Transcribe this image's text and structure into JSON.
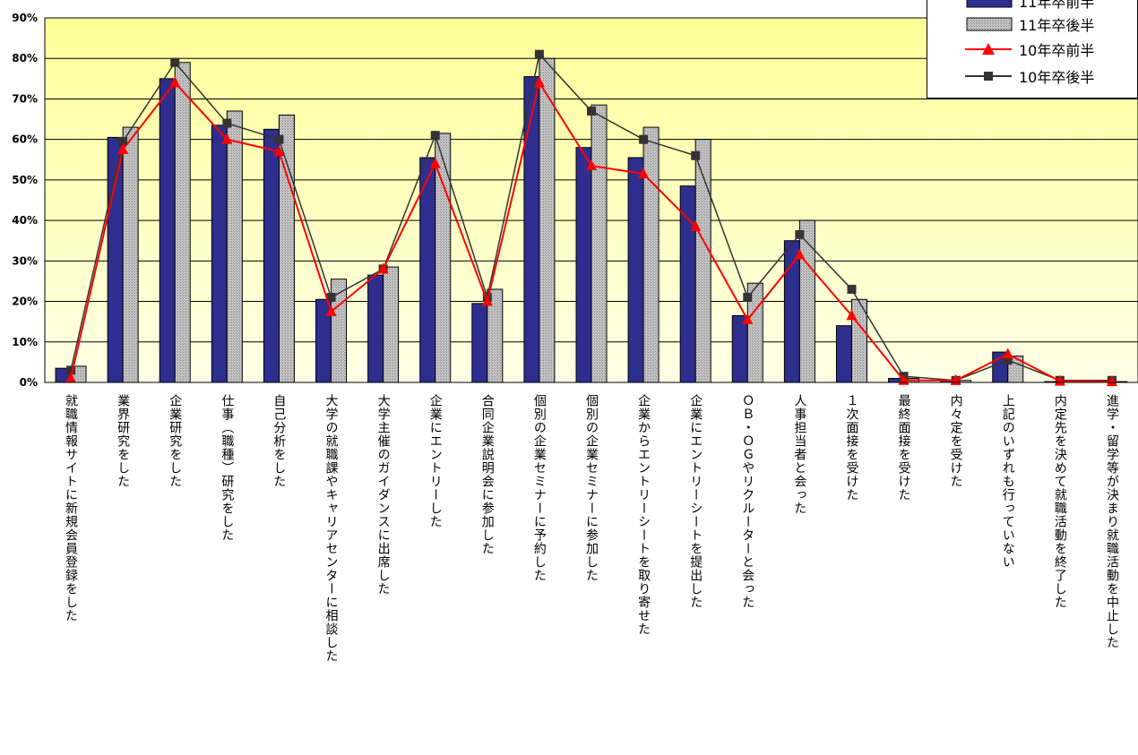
{
  "title_fragment": "",
  "chart_data": {
    "type": "bar",
    "ylim": [
      0,
      90
    ],
    "yticks": [
      "0%",
      "10%",
      "20%",
      "30%",
      "40%",
      "50%",
      "60%",
      "70%",
      "80%",
      "90%"
    ],
    "grid": true,
    "legend_position": "top-right",
    "categories": [
      "就職情報サイトに新規会員登録をした",
      "業界研究をした",
      "企業研究をした",
      "仕事（職種）研究をした",
      "自己分析をした",
      "大学の就職課やキャリアセンターに相談した",
      "大学主催のガイダンスに出席した",
      "企業にエントリーした",
      "合同企業説明会に参加した",
      "個別の企業セミナーに予約した",
      "個別の企業セミナーに参加した",
      "企業からエントリーシートを取り寄せた",
      "企業にエントリーシートを提出した",
      "ＯＢ・ＯＧやリクルーターと会った",
      "人事担当者と会った",
      "１次面接を受けた",
      "最終面接を受けた",
      "内々定を受けた",
      "上記のいずれも行っていない",
      "内定先を決めて就職活動を終了した",
      "進学・留学等が決まり就職活動を中止した"
    ],
    "series": [
      {
        "name": "11年卒前半",
        "kind": "bar",
        "color": "#2e2e8f",
        "values": [
          3.5,
          60.5,
          75,
          63.5,
          62.5,
          20.5,
          26.5,
          55.5,
          19.5,
          75.5,
          58,
          55.5,
          48.5,
          16.5,
          35,
          14,
          1,
          0.5,
          7.5,
          0.2,
          0.2
        ]
      },
      {
        "name": "11年卒後半",
        "kind": "bar",
        "color": "#b0b0b0",
        "values": [
          4,
          63,
          79,
          67,
          66,
          25.5,
          28.5,
          61.5,
          23,
          80,
          68.5,
          63,
          60,
          24.5,
          40,
          20.5,
          1,
          0.5,
          6.5,
          0.3,
          0.2
        ]
      },
      {
        "name": "10年卒前半",
        "kind": "line",
        "color": "#ff0000",
        "values": [
          1,
          57.5,
          74,
          60,
          57,
          17.5,
          28,
          54,
          20,
          74,
          53.5,
          51.5,
          38.5,
          15.5,
          31.5,
          16.5,
          0.5,
          0.5,
          7,
          0.3,
          0.2
        ]
      },
      {
        "name": "10年卒後半",
        "kind": "line",
        "color": "#333333",
        "values": [
          3,
          59.5,
          79,
          64,
          60,
          21,
          28,
          61,
          21,
          81,
          67,
          60,
          56,
          21,
          36.5,
          23,
          1.5,
          0.5,
          5.5,
          0.5,
          0.5
        ]
      }
    ]
  }
}
